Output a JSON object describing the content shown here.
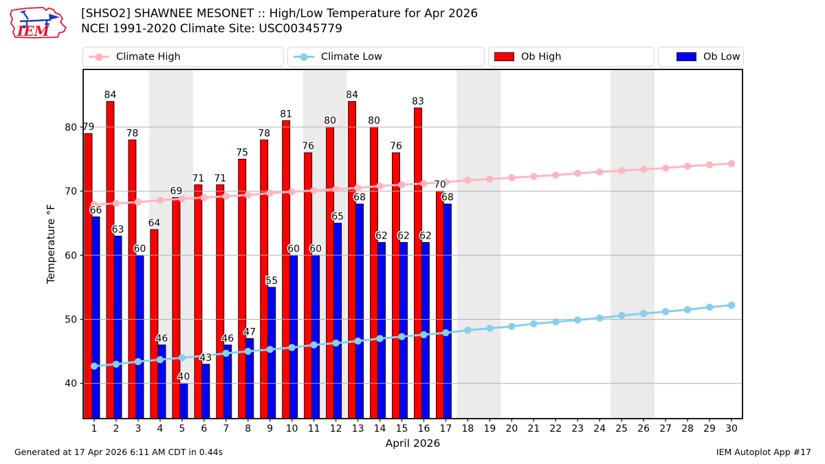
{
  "header": {
    "title_line1": "[SHSO2] SHAWNEE MESONET :: High/Low Temperature for Apr 2026",
    "title_line2": "NCEI 1991-2020 Climate Site: USC00345779",
    "logo_text": "IEM"
  },
  "legend": {
    "items": [
      {
        "label": "Climate High",
        "marker": "line-dot",
        "color": "#ffb6c1"
      },
      {
        "label": "Climate Low",
        "marker": "line-dot",
        "color": "#87ceeb"
      },
      {
        "label": "Ob High",
        "marker": "rect",
        "color": "#ff0000"
      },
      {
        "label": "Ob Low",
        "marker": "rect",
        "color": "#0000ff"
      }
    ]
  },
  "chart_data": {
    "type": "bar",
    "subtype": "grouped-bars-with-climatology-lines",
    "xlabel": "April 2026",
    "ylabel": "Temperature °F",
    "x_days": [
      1,
      2,
      3,
      4,
      5,
      6,
      7,
      8,
      9,
      10,
      11,
      12,
      13,
      14,
      15,
      16,
      17,
      18,
      19,
      20,
      21,
      22,
      23,
      24,
      25,
      26,
      27,
      28,
      29,
      30
    ],
    "ylim": [
      34.5,
      89
    ],
    "yticks": [
      40,
      50,
      60,
      70,
      80
    ],
    "grid": "horizontal",
    "grid_color": "#b0b0b0",
    "weekend_band_color": "#ebebeb",
    "weekend_bands_days": [
      [
        4,
        5
      ],
      [
        11,
        12
      ],
      [
        18,
        19
      ],
      [
        25,
        26
      ]
    ],
    "legend_position": "top",
    "series": [
      {
        "name": "Climate High",
        "type": "line",
        "color": "#ffb6c1",
        "values": [
          67.9,
          68.1,
          68.3,
          68.6,
          68.8,
          69.0,
          69.2,
          69.4,
          69.7,
          69.9,
          70.1,
          70.3,
          70.5,
          70.8,
          71.0,
          71.2,
          71.4,
          71.7,
          71.9,
          72.1,
          72.3,
          72.5,
          72.8,
          73.0,
          73.2,
          73.4,
          73.6,
          73.9,
          74.1,
          74.3
        ]
      },
      {
        "name": "Climate Low",
        "type": "line",
        "color": "#87ceeb",
        "values": [
          42.7,
          43.0,
          43.4,
          43.7,
          44.0,
          44.3,
          44.7,
          45.0,
          45.3,
          45.6,
          46.0,
          46.3,
          46.6,
          47.0,
          47.3,
          47.6,
          47.9,
          48.3,
          48.6,
          48.9,
          49.3,
          49.6,
          49.9,
          50.2,
          50.6,
          50.9,
          51.2,
          51.5,
          51.9,
          52.2
        ]
      },
      {
        "name": "Ob High",
        "type": "bar",
        "color": "#ff0000",
        "values": [
          79,
          84,
          78,
          64,
          69,
          71,
          71,
          75,
          78,
          81,
          76,
          80,
          84,
          80,
          76,
          83,
          70
        ]
      },
      {
        "name": "Ob Low",
        "type": "bar",
        "color": "#0000ff",
        "values": [
          66,
          63,
          60,
          46,
          40,
          43,
          46,
          47,
          55,
          60,
          60,
          65,
          68,
          62,
          62,
          62,
          68
        ]
      }
    ]
  },
  "footer": {
    "generated": "Generated at 17 Apr 2026 6:11 AM CDT in 0.44s",
    "app": "IEM Autoplot App #17"
  }
}
